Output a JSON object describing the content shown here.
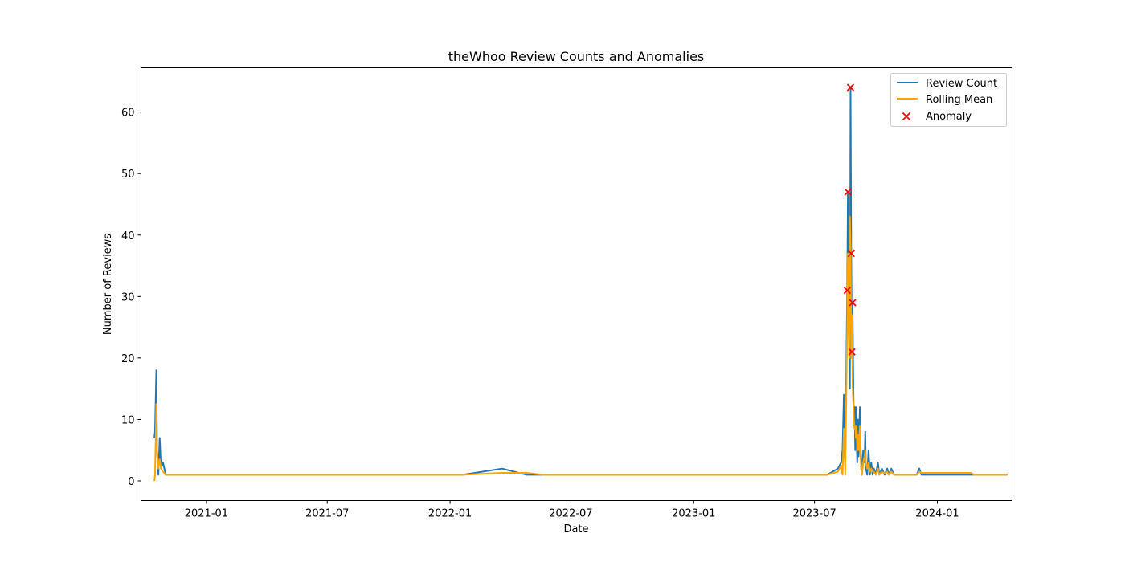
{
  "chart_data": {
    "type": "line",
    "title": "theWhoo Review Counts and Anomalies",
    "xlabel": "Date",
    "ylabel": "Number of Reviews",
    "xlim": [
      "2020-09-25",
      "2024-04-22"
    ],
    "ylim": [
      -3.2,
      67.2
    ],
    "x_ticks": [
      "2021-01-01",
      "2021-07-01",
      "2022-01-01",
      "2022-07-01",
      "2023-01-01",
      "2023-07-01",
      "2024-01-01"
    ],
    "x_tick_labels": [
      "2021-01",
      "2021-07",
      "2022-01",
      "2022-07",
      "2023-01",
      "2023-07",
      "2024-01"
    ],
    "y_ticks": [
      0,
      10,
      20,
      30,
      40,
      50,
      60
    ],
    "grid": false,
    "legend_position": "top-right",
    "colors": {
      "review_count": "#1f77b4",
      "rolling_mean": "#ffa500",
      "anomaly": "#ff0000"
    },
    "series": [
      {
        "name": "Review Count",
        "type": "line",
        "points": [
          [
            "2020-10-15",
            7
          ],
          [
            "2020-10-16",
            8
          ],
          [
            "2020-10-18",
            18
          ],
          [
            "2020-10-19",
            5
          ],
          [
            "2020-10-21",
            1
          ],
          [
            "2020-10-23",
            7
          ],
          [
            "2020-10-25",
            2
          ],
          [
            "2020-10-28",
            3
          ],
          [
            "2020-11-01",
            1
          ],
          [
            "2020-11-05",
            1
          ],
          [
            "2022-01-20",
            1
          ],
          [
            "2022-03-20",
            2
          ],
          [
            "2022-04-25",
            1
          ],
          [
            "2022-05-20",
            1
          ],
          [
            "2023-07-20",
            1
          ],
          [
            "2023-08-05",
            2
          ],
          [
            "2023-08-10",
            3
          ],
          [
            "2023-08-12",
            5
          ],
          [
            "2023-08-14",
            14
          ],
          [
            "2023-08-16",
            3
          ],
          [
            "2023-08-19",
            31
          ],
          [
            "2023-08-20",
            47
          ],
          [
            "2023-08-21",
            33
          ],
          [
            "2023-08-22",
            26
          ],
          [
            "2023-08-23",
            15
          ],
          [
            "2023-08-24",
            64
          ],
          [
            "2023-08-25",
            37
          ],
          [
            "2023-08-26",
            21
          ],
          [
            "2023-08-27",
            29
          ],
          [
            "2023-08-28",
            17
          ],
          [
            "2023-08-29",
            9
          ],
          [
            "2023-08-30",
            12
          ],
          [
            "2023-08-31",
            5
          ],
          [
            "2023-09-01",
            12
          ],
          [
            "2023-09-02",
            8
          ],
          [
            "2023-09-03",
            3
          ],
          [
            "2023-09-04",
            10
          ],
          [
            "2023-09-05",
            4
          ],
          [
            "2023-09-07",
            12
          ],
          [
            "2023-09-08",
            6
          ],
          [
            "2023-09-09",
            2
          ],
          [
            "2023-09-10",
            1
          ],
          [
            "2023-09-12",
            5
          ],
          [
            "2023-09-14",
            3
          ],
          [
            "2023-09-15",
            8
          ],
          [
            "2023-09-16",
            2
          ],
          [
            "2023-09-18",
            1
          ],
          [
            "2023-09-20",
            5
          ],
          [
            "2023-09-22",
            1
          ],
          [
            "2023-09-24",
            3
          ],
          [
            "2023-09-26",
            1
          ],
          [
            "2023-09-28",
            2
          ],
          [
            "2023-10-01",
            1
          ],
          [
            "2023-10-04",
            3
          ],
          [
            "2023-10-06",
            1
          ],
          [
            "2023-10-10",
            2
          ],
          [
            "2023-10-14",
            1
          ],
          [
            "2023-10-18",
            2
          ],
          [
            "2023-10-20",
            1
          ],
          [
            "2023-10-24",
            2
          ],
          [
            "2023-10-28",
            1
          ],
          [
            "2023-11-10",
            1
          ],
          [
            "2023-11-15",
            1
          ],
          [
            "2023-11-25",
            1
          ],
          [
            "2023-12-01",
            1
          ],
          [
            "2023-12-05",
            2
          ],
          [
            "2023-12-08",
            1
          ],
          [
            "2024-01-20",
            1
          ],
          [
            "2024-02-20",
            1
          ],
          [
            "2024-04-15",
            1
          ]
        ]
      },
      {
        "name": "Rolling Mean",
        "type": "line",
        "points": [
          [
            "2020-10-15",
            0
          ],
          [
            "2020-10-16",
            1
          ],
          [
            "2020-10-18",
            12.5
          ],
          [
            "2020-10-19",
            5
          ],
          [
            "2020-10-21",
            2
          ],
          [
            "2020-10-23",
            3.5
          ],
          [
            "2020-10-25",
            2
          ],
          [
            "2020-10-28",
            1.5
          ],
          [
            "2020-11-01",
            1
          ],
          [
            "2020-11-05",
            1
          ],
          [
            "2022-01-20",
            1
          ],
          [
            "2022-03-20",
            1.3
          ],
          [
            "2022-04-25",
            1.3
          ],
          [
            "2022-05-20",
            1
          ],
          [
            "2023-07-20",
            1
          ],
          [
            "2023-08-05",
            1.5
          ],
          [
            "2023-08-10",
            2.5
          ],
          [
            "2023-08-12",
            1
          ],
          [
            "2023-08-14",
            8.5
          ],
          [
            "2023-08-16",
            1
          ],
          [
            "2023-08-19",
            25
          ],
          [
            "2023-08-20",
            37
          ],
          [
            "2023-08-21",
            26
          ],
          [
            "2023-08-22",
            20
          ],
          [
            "2023-08-23",
            43
          ],
          [
            "2023-08-24",
            38
          ],
          [
            "2023-08-25",
            20
          ],
          [
            "2023-08-26",
            27
          ],
          [
            "2023-08-27",
            16
          ],
          [
            "2023-08-28",
            13
          ],
          [
            "2023-08-29",
            10
          ],
          [
            "2023-08-30",
            8.5
          ],
          [
            "2023-08-31",
            9
          ],
          [
            "2023-09-01",
            7
          ],
          [
            "2023-09-02",
            9
          ],
          [
            "2023-09-03",
            5
          ],
          [
            "2023-09-04",
            7.5
          ],
          [
            "2023-09-05",
            5
          ],
          [
            "2023-09-07",
            9
          ],
          [
            "2023-09-08",
            4
          ],
          [
            "2023-09-09",
            2
          ],
          [
            "2023-09-10",
            1
          ],
          [
            "2023-09-12",
            3
          ],
          [
            "2023-09-14",
            4
          ],
          [
            "2023-09-15",
            5
          ],
          [
            "2023-09-16",
            3
          ],
          [
            "2023-09-18",
            2
          ],
          [
            "2023-09-20",
            3
          ],
          [
            "2023-09-22",
            1.5
          ],
          [
            "2023-09-24",
            2
          ],
          [
            "2023-09-26",
            1.5
          ],
          [
            "2023-09-28",
            1.5
          ],
          [
            "2023-10-01",
            1
          ],
          [
            "2023-10-04",
            2
          ],
          [
            "2023-10-06",
            1
          ],
          [
            "2023-10-10",
            1.5
          ],
          [
            "2023-10-14",
            1.2
          ],
          [
            "2023-10-18",
            1.5
          ],
          [
            "2023-10-20",
            1
          ],
          [
            "2023-10-24",
            1.5
          ],
          [
            "2023-10-28",
            1
          ],
          [
            "2023-11-10",
            1
          ],
          [
            "2023-11-15",
            1
          ],
          [
            "2023-11-25",
            1
          ],
          [
            "2023-12-01",
            1
          ],
          [
            "2023-12-05",
            1.5
          ],
          [
            "2023-12-08",
            1.3
          ],
          [
            "2024-01-20",
            1.3
          ],
          [
            "2024-02-20",
            1.3
          ],
          [
            "2024-02-25",
            1
          ],
          [
            "2024-04-15",
            1
          ]
        ]
      },
      {
        "name": "Anomaly",
        "type": "scatter",
        "marker": "x",
        "points": [
          [
            "2023-08-19",
            31
          ],
          [
            "2023-08-20",
            47
          ],
          [
            "2023-08-24",
            64
          ],
          [
            "2023-08-25",
            37
          ],
          [
            "2023-08-26",
            21
          ],
          [
            "2023-08-27",
            29
          ]
        ]
      }
    ]
  }
}
